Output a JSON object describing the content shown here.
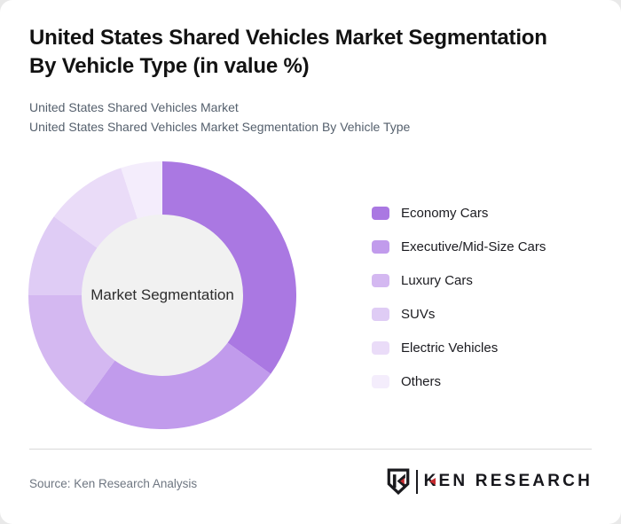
{
  "card": {
    "title_lines": [
      "United States Shared Vehicles Market Segmentation",
      "By Vehicle Type (in value %)"
    ],
    "subtitle_lines": [
      "United States Shared Vehicles Market",
      "United States Shared Vehicles Market Segmentation By Vehicle Type"
    ]
  },
  "chart_data": {
    "type": "pie",
    "variant": "donut",
    "title": "United States Shared Vehicles Market Segmentation By Vehicle Type (in value %)",
    "center_label": "Market Segmentation",
    "categories": [
      "Economy Cars",
      "Executive/Mid-Size Cars",
      "Luxury Cars",
      "SUVs",
      "Electric Vehicles",
      "Others"
    ],
    "values": [
      35,
      25,
      15,
      10,
      10,
      5
    ],
    "unit": "%",
    "colors": [
      "#aa78e2",
      "#c19bec",
      "#d4b8f1",
      "#dfccf5",
      "#eadcf8",
      "#f4edfc"
    ],
    "center_fill": "#f1f1f1",
    "start_angle_deg": 0,
    "direction": "clockwise",
    "legend_position": "right",
    "data_labels_shown": false
  },
  "footer": {
    "source": "Source: Ken Research Analysis",
    "logo_text": "KEN RESEARCH"
  }
}
